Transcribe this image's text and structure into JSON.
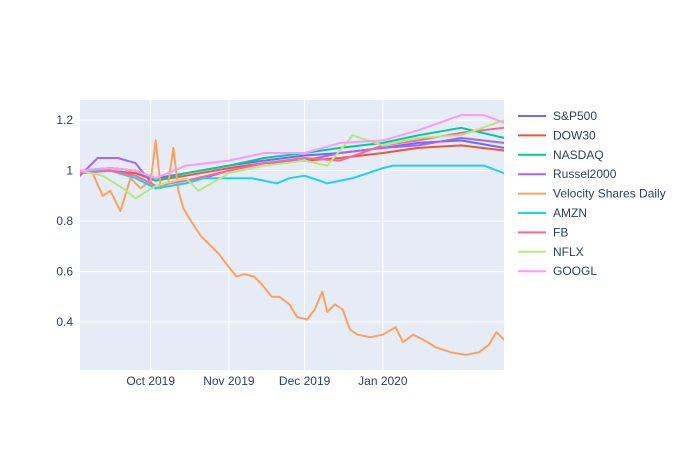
{
  "chart_data": {
    "type": "line",
    "title": "",
    "xlabel": "",
    "ylabel": "",
    "xlim": [
      "2019-09-03",
      "2020-02-18"
    ],
    "ylim": [
      0.21,
      1.28
    ],
    "x_ticks": [
      {
        "date": "2019-10-01",
        "label": "Oct 2019"
      },
      {
        "date": "2019-11-01",
        "label": "Nov 2019"
      },
      {
        "date": "2019-12-01",
        "label": "Dec 2019"
      },
      {
        "date": "2020-01-01",
        "label": "Jan 2020"
      }
    ],
    "y_ticks": [
      {
        "value": 0.4,
        "label": "0.4"
      },
      {
        "value": 0.6,
        "label": "0.6"
      },
      {
        "value": 0.8,
        "label": "0.8"
      },
      {
        "value": 1.0,
        "label": "1"
      },
      {
        "value": 1.2,
        "label": "1.2"
      }
    ],
    "grid": true,
    "legend_position": "right",
    "series": [
      {
        "name": "S&P500",
        "color": "#636efa",
        "x": [
          "2019-09-03",
          "2019-09-15",
          "2019-09-25",
          "2019-10-03",
          "2019-10-15",
          "2019-11-01",
          "2019-11-15",
          "2019-12-01",
          "2019-12-15",
          "2020-01-01",
          "2020-01-15",
          "2020-02-01",
          "2020-02-18"
        ],
        "values": [
          1.0,
          1.01,
          1.0,
          0.97,
          0.99,
          1.02,
          1.04,
          1.06,
          1.07,
          1.09,
          1.11,
          1.12,
          1.09
        ]
      },
      {
        "name": "DOW30",
        "color": "#ef553b",
        "x": [
          "2019-09-03",
          "2019-09-15",
          "2019-09-25",
          "2019-10-03",
          "2019-10-15",
          "2019-11-01",
          "2019-11-15",
          "2019-12-01",
          "2019-12-15",
          "2020-01-01",
          "2020-01-15",
          "2020-02-01",
          "2020-02-18"
        ],
        "values": [
          1.0,
          1.0,
          0.99,
          0.96,
          0.98,
          1.01,
          1.03,
          1.04,
          1.05,
          1.07,
          1.09,
          1.1,
          1.08
        ]
      },
      {
        "name": "NASDAQ",
        "color": "#00cc96",
        "x": [
          "2019-09-03",
          "2019-09-15",
          "2019-09-25",
          "2019-10-03",
          "2019-10-15",
          "2019-11-01",
          "2019-11-15",
          "2019-12-01",
          "2019-12-15",
          "2020-01-01",
          "2020-01-15",
          "2020-02-01",
          "2020-02-18"
        ],
        "values": [
          1.0,
          1.01,
          1.0,
          0.96,
          0.99,
          1.02,
          1.05,
          1.07,
          1.09,
          1.11,
          1.14,
          1.17,
          1.13
        ]
      },
      {
        "name": "Russel2000",
        "color": "#ab63fa",
        "x": [
          "2019-09-03",
          "2019-09-10",
          "2019-09-18",
          "2019-09-25",
          "2019-10-03",
          "2019-10-15",
          "2019-11-01",
          "2019-11-15",
          "2019-12-01",
          "2019-12-15",
          "2020-01-01",
          "2020-01-15",
          "2020-02-01",
          "2020-02-18"
        ],
        "values": [
          0.98,
          1.05,
          1.05,
          1.03,
          0.93,
          0.95,
          1.0,
          1.03,
          1.04,
          1.07,
          1.09,
          1.1,
          1.13,
          1.11
        ]
      },
      {
        "name": "Velocity Shares Daily",
        "color": "#ffa15a",
        "x": [
          "2019-09-03",
          "2019-09-08",
          "2019-09-12",
          "2019-09-15",
          "2019-09-19",
          "2019-09-23",
          "2019-09-27",
          "2019-10-01",
          "2019-10-03",
          "2019-10-05",
          "2019-10-08",
          "2019-10-10",
          "2019-10-12",
          "2019-10-14",
          "2019-10-17",
          "2019-10-21",
          "2019-10-24",
          "2019-10-28",
          "2019-10-31",
          "2019-11-04",
          "2019-11-07",
          "2019-11-11",
          "2019-11-14",
          "2019-11-18",
          "2019-11-21",
          "2019-11-25",
          "2019-11-28",
          "2019-12-02",
          "2019-12-05",
          "2019-12-08",
          "2019-12-10",
          "2019-12-13",
          "2019-12-16",
          "2019-12-19",
          "2019-12-22",
          "2019-12-27",
          "2020-01-01",
          "2020-01-06",
          "2020-01-09",
          "2020-01-13",
          "2020-01-17",
          "2020-01-22",
          "2020-01-28",
          "2020-02-03",
          "2020-02-08",
          "2020-02-12",
          "2020-02-15",
          "2020-02-18"
        ],
        "values": [
          1.0,
          0.99,
          0.9,
          0.92,
          0.84,
          0.97,
          0.93,
          0.96,
          1.12,
          0.93,
          0.95,
          1.09,
          0.92,
          0.85,
          0.8,
          0.74,
          0.71,
          0.67,
          0.63,
          0.58,
          0.59,
          0.58,
          0.55,
          0.5,
          0.5,
          0.47,
          0.42,
          0.41,
          0.45,
          0.52,
          0.44,
          0.47,
          0.45,
          0.37,
          0.35,
          0.34,
          0.35,
          0.38,
          0.32,
          0.35,
          0.33,
          0.3,
          0.28,
          0.27,
          0.28,
          0.31,
          0.36,
          0.33
        ]
      },
      {
        "name": "AMZN",
        "color": "#19d3f3",
        "x": [
          "2019-09-03",
          "2019-09-15",
          "2019-09-25",
          "2019-10-03",
          "2019-10-15",
          "2019-10-22",
          "2019-11-01",
          "2019-11-10",
          "2019-11-20",
          "2019-11-25",
          "2019-12-01",
          "2019-12-10",
          "2019-12-20",
          "2020-01-01",
          "2020-01-05",
          "2020-01-15",
          "2020-02-01",
          "2020-02-10",
          "2020-02-18"
        ],
        "values": [
          1.0,
          1.0,
          0.97,
          0.93,
          0.95,
          0.97,
          0.97,
          0.97,
          0.95,
          0.97,
          0.98,
          0.95,
          0.97,
          1.01,
          1.02,
          1.02,
          1.02,
          1.02,
          0.99
        ]
      },
      {
        "name": "FB",
        "color": "#ff6692",
        "x": [
          "2019-09-03",
          "2019-09-15",
          "2019-09-25",
          "2019-10-03",
          "2019-10-15",
          "2019-11-01",
          "2019-11-15",
          "2019-12-01",
          "2019-12-15",
          "2020-01-01",
          "2020-01-15",
          "2020-02-01",
          "2020-02-18"
        ],
        "values": [
          0.99,
          1.0,
          0.98,
          0.94,
          0.96,
          1.0,
          1.03,
          1.05,
          1.04,
          1.1,
          1.12,
          1.15,
          1.17
        ]
      },
      {
        "name": "NFLX",
        "color": "#b6e880",
        "x": [
          "2019-09-03",
          "2019-09-12",
          "2019-09-20",
          "2019-09-25",
          "2019-10-03",
          "2019-10-15",
          "2019-10-20",
          "2019-11-01",
          "2019-11-15",
          "2019-12-01",
          "2019-12-10",
          "2019-12-20",
          "2020-01-01",
          "2020-01-15",
          "2020-02-01",
          "2020-02-18"
        ],
        "values": [
          1.0,
          0.98,
          0.93,
          0.89,
          0.94,
          0.97,
          0.92,
          0.99,
          1.02,
          1.04,
          1.02,
          1.14,
          1.1,
          1.13,
          1.14,
          1.2
        ]
      },
      {
        "name": "GOOGL",
        "color": "#ff97ff",
        "x": [
          "2019-09-03",
          "2019-09-15",
          "2019-09-25",
          "2019-10-03",
          "2019-10-15",
          "2019-11-01",
          "2019-11-15",
          "2019-12-01",
          "2019-12-15",
          "2020-01-01",
          "2020-01-15",
          "2020-02-01",
          "2020-02-10",
          "2020-02-18"
        ],
        "values": [
          1.0,
          1.01,
          1.0,
          0.97,
          1.02,
          1.04,
          1.07,
          1.07,
          1.11,
          1.12,
          1.16,
          1.22,
          1.22,
          1.19
        ]
      }
    ]
  }
}
